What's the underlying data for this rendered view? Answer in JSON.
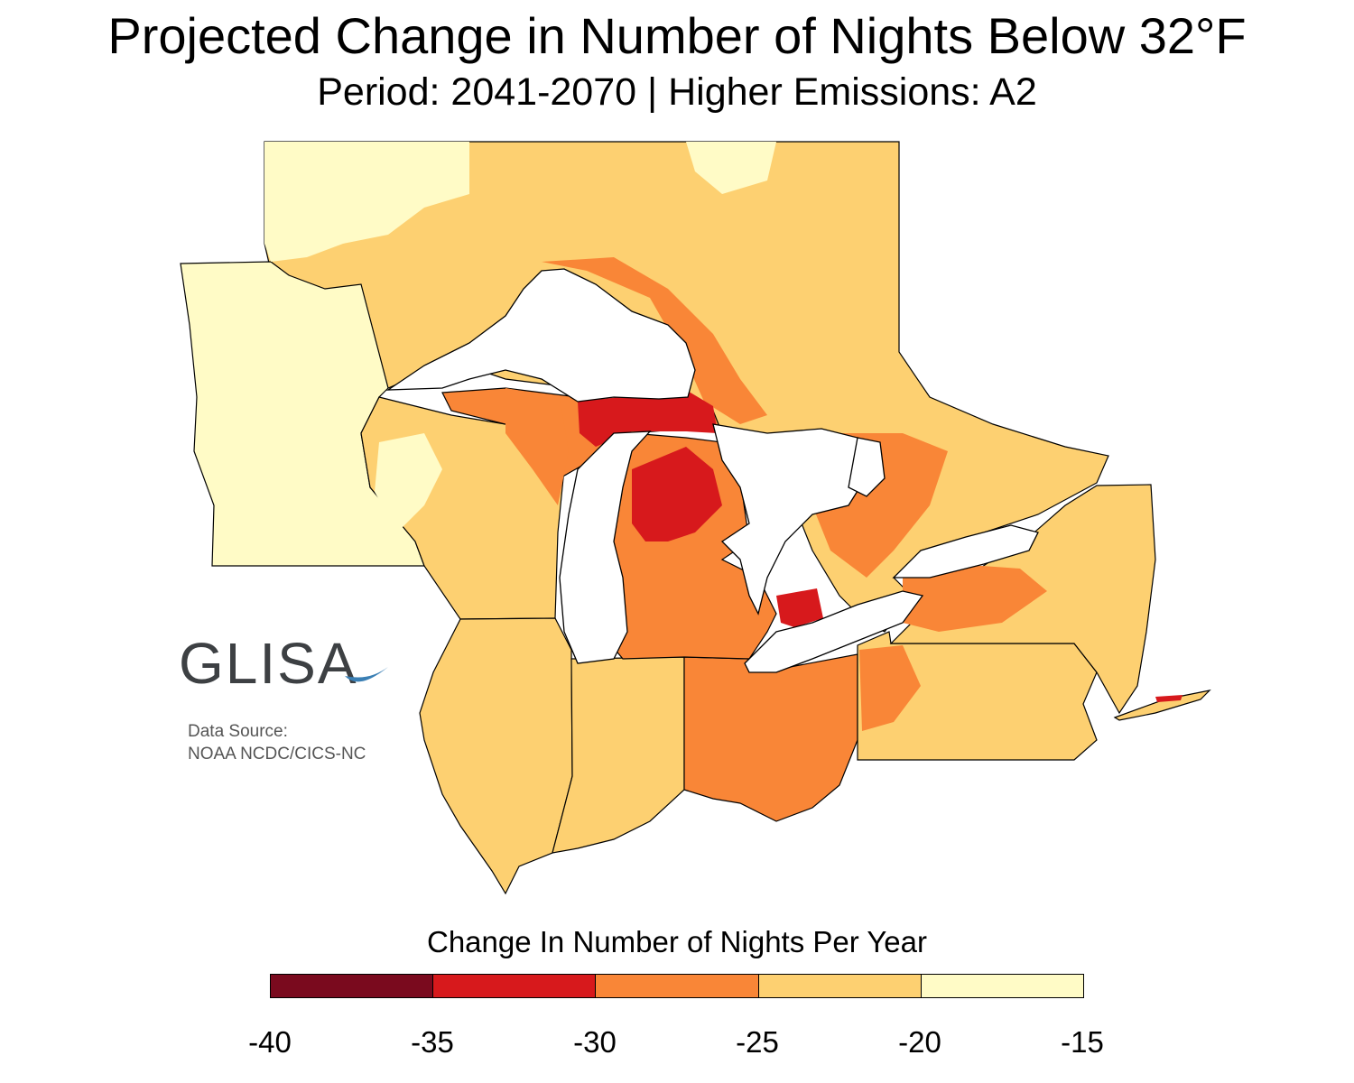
{
  "title": "Projected Change in Number of Nights Below 32°F",
  "subtitle": "Period: 2041-2070 | Higher Emissions: A2",
  "logo_text": "GLISA",
  "source": {
    "line1": "Data Source:",
    "line2": "NOAA NCDC/CICS-NC"
  },
  "legend": {
    "title": "Change In Number of Nights Per Year",
    "bins": [
      {
        "from": -40,
        "to": -35,
        "color": "#7a0a1e"
      },
      {
        "from": -35,
        "to": -30,
        "color": "#d7191c"
      },
      {
        "from": -30,
        "to": -25,
        "color": "#f98637"
      },
      {
        "from": -25,
        "to": -20,
        "color": "#fdd071"
      },
      {
        "from": -20,
        "to": -15,
        "color": "#fffbc6"
      }
    ],
    "ticks": [
      "-40",
      "-35",
      "-30",
      "-25",
      "-20",
      "-15"
    ]
  },
  "colors": {
    "lake": "#ffffff",
    "border": "#000000",
    "logo": "#3d4043",
    "logo_wave": "#3a7fb4"
  }
}
